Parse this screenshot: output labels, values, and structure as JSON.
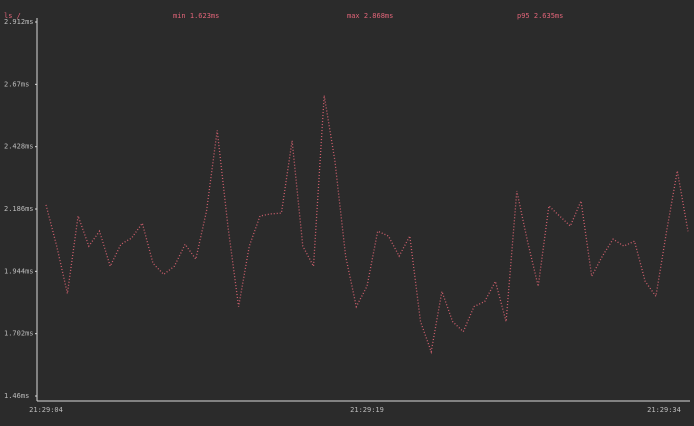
{
  "chart_data": {
    "type": "line",
    "title": "ls /",
    "annotations": [
      "min 1.623ms",
      "max 2.868ms",
      "p95 2.635ms"
    ],
    "categories": [
      "21:29:04",
      null,
      null,
      null,
      null,
      null,
      null,
      null,
      null,
      null,
      null,
      null,
      null,
      null,
      null,
      null,
      null,
      null,
      null,
      null,
      null,
      null,
      null,
      null,
      null,
      null,
      null,
      null,
      null,
      null,
      "21:29:19",
      null,
      null,
      null,
      null,
      null,
      null,
      null,
      null,
      null,
      null,
      null,
      null,
      null,
      null,
      null,
      null,
      null,
      null,
      null,
      null,
      null,
      null,
      null,
      null,
      null,
      null,
      null,
      null,
      null,
      "21:29:34"
    ],
    "values": [
      2.202,
      2.042,
      1.858,
      2.159,
      2.042,
      2.1,
      1.964,
      2.049,
      2.073,
      2.131,
      1.975,
      1.932,
      1.964,
      2.049,
      1.991,
      2.178,
      2.491,
      2.12,
      1.807,
      2.042,
      2.159,
      2.167,
      2.17,
      2.451,
      2.042,
      1.964,
      2.627,
      2.373,
      2.003,
      1.807,
      1.886,
      2.1,
      2.081,
      2.003,
      2.081,
      1.749,
      1.632,
      1.866,
      1.749,
      1.71,
      1.807,
      1.827,
      1.905,
      1.749,
      2.256,
      2.061,
      1.886,
      2.198,
      2.159,
      2.12,
      2.217,
      1.925,
      2.003,
      2.069,
      2.042,
      2.061,
      1.905,
      1.847,
      2.1,
      2.334,
      2.1
    ],
    "color": "#d0606e",
    "ylim": [
      1.46,
      2.912
    ],
    "yticks": [
      {
        "value": 1.46,
        "label": "1.46ms"
      },
      {
        "value": 1.702,
        "label": "1.702ms"
      },
      {
        "value": 1.944,
        "label": "1.944ms"
      },
      {
        "value": 2.186,
        "label": "2.186ms"
      },
      {
        "value": 2.428,
        "label": "2.428ms"
      },
      {
        "value": 2.67,
        "label": "2.67ms"
      },
      {
        "value": 2.912,
        "label": "2.912ms"
      }
    ],
    "grid": false
  }
}
